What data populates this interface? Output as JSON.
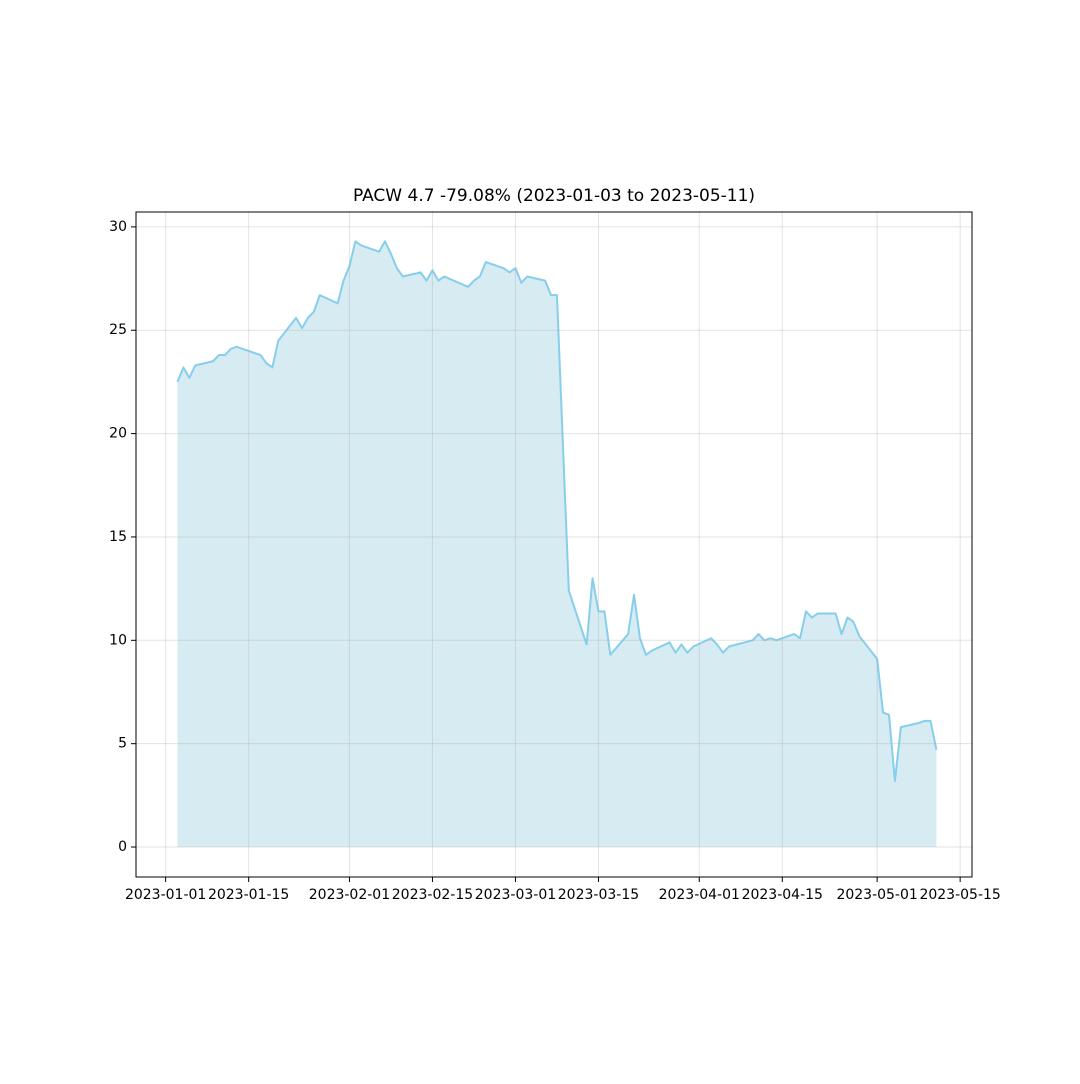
{
  "chart_data": {
    "type": "area",
    "title": "PACW 4.7 -79.08% (2023-01-03 to 2023-05-11)",
    "x": [
      "2023-01-03",
      "2023-01-04",
      "2023-01-05",
      "2023-01-06",
      "2023-01-09",
      "2023-01-10",
      "2023-01-11",
      "2023-01-12",
      "2023-01-13",
      "2023-01-17",
      "2023-01-18",
      "2023-01-19",
      "2023-01-20",
      "2023-01-23",
      "2023-01-24",
      "2023-01-25",
      "2023-01-26",
      "2023-01-27",
      "2023-01-30",
      "2023-01-31",
      "2023-02-01",
      "2023-02-02",
      "2023-02-03",
      "2023-02-06",
      "2023-02-07",
      "2023-02-08",
      "2023-02-09",
      "2023-02-10",
      "2023-02-13",
      "2023-02-14",
      "2023-02-15",
      "2023-02-16",
      "2023-02-17",
      "2023-02-21",
      "2023-02-22",
      "2023-02-23",
      "2023-02-24",
      "2023-02-27",
      "2023-02-28",
      "2023-03-01",
      "2023-03-02",
      "2023-03-03",
      "2023-03-06",
      "2023-03-07",
      "2023-03-08",
      "2023-03-09",
      "2023-03-10",
      "2023-03-13",
      "2023-03-14",
      "2023-03-15",
      "2023-03-16",
      "2023-03-17",
      "2023-03-20",
      "2023-03-21",
      "2023-03-22",
      "2023-03-23",
      "2023-03-24",
      "2023-03-27",
      "2023-03-28",
      "2023-03-29",
      "2023-03-30",
      "2023-03-31",
      "2023-04-03",
      "2023-04-04",
      "2023-04-05",
      "2023-04-06",
      "2023-04-10",
      "2023-04-11",
      "2023-04-12",
      "2023-04-13",
      "2023-04-14",
      "2023-04-17",
      "2023-04-18",
      "2023-04-19",
      "2023-04-20",
      "2023-04-21",
      "2023-04-24",
      "2023-04-25",
      "2023-04-26",
      "2023-04-27",
      "2023-04-28",
      "2023-05-01",
      "2023-05-02",
      "2023-05-03",
      "2023-05-04",
      "2023-05-05",
      "2023-05-08",
      "2023-05-09",
      "2023-05-10",
      "2023-05-11"
    ],
    "series": [
      {
        "color": "#87ceeb",
        "fill_color": "#add8e6",
        "values": [
          22.5,
          23.2,
          22.7,
          23.3,
          23.5,
          23.8,
          23.8,
          24.1,
          24.2,
          23.8,
          23.4,
          23.2,
          24.5,
          25.6,
          25.1,
          25.6,
          25.9,
          26.7,
          26.3,
          27.4,
          28.1,
          29.3,
          29.1,
          28.8,
          29.3,
          28.7,
          28.0,
          27.6,
          27.8,
          27.4,
          27.9,
          27.4,
          27.6,
          27.1,
          27.4,
          27.6,
          28.3,
          28.0,
          27.8,
          28.0,
          27.3,
          27.6,
          27.4,
          26.7,
          26.7,
          19.5,
          12.4,
          9.8,
          13.0,
          11.4,
          11.4,
          9.3,
          10.3,
          12.2,
          10.1,
          9.3,
          9.5,
          9.9,
          9.4,
          9.8,
          9.4,
          9.7,
          10.1,
          9.8,
          9.4,
          9.7,
          10.0,
          10.3,
          10.0,
          10.1,
          10.0,
          10.3,
          10.1,
          11.4,
          11.1,
          11.3,
          11.3,
          10.3,
          11.1,
          10.9,
          10.2,
          9.1,
          6.5,
          6.4,
          3.2,
          5.8,
          6.0,
          6.1,
          6.1,
          4.7
        ]
      }
    ],
    "xlim": [
      "2022-12-27",
      "2023-05-17"
    ],
    "xticks": [
      "2023-01-01",
      "2023-01-15",
      "2023-02-01",
      "2023-02-15",
      "2023-03-01",
      "2023-03-15",
      "2023-04-01",
      "2023-04-15",
      "2023-05-01",
      "2023-05-15"
    ],
    "ylim": [
      -1.45,
      30.72
    ],
    "yticks": [
      0,
      5,
      10,
      15,
      20,
      25,
      30
    ],
    "grid": true
  }
}
